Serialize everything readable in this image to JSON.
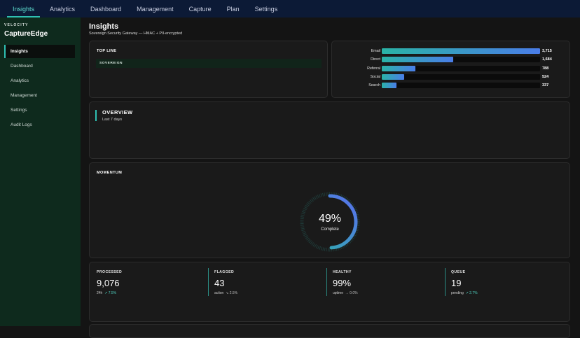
{
  "topnav": {
    "tabs": [
      {
        "label": "Insights",
        "active": true
      },
      {
        "label": "Analytics",
        "active": false
      },
      {
        "label": "Dashboard",
        "active": false
      },
      {
        "label": "Management",
        "active": false
      },
      {
        "label": "Capture",
        "active": false
      },
      {
        "label": "Plan",
        "active": false
      },
      {
        "label": "Settings",
        "active": false
      }
    ]
  },
  "sidebar": {
    "brand_small": "VELOCITY",
    "brand_name": "CaptureEdge",
    "items": [
      {
        "label": "Insights",
        "active": true
      },
      {
        "label": "Dashboard",
        "active": false
      },
      {
        "label": "Analytics",
        "active": false
      },
      {
        "label": "Management",
        "active": false
      },
      {
        "label": "Settings",
        "active": false
      },
      {
        "label": "Audit Logs",
        "active": false
      }
    ]
  },
  "header": {
    "title": "Insights",
    "subtitle": "Sovereign Security Gateway — HMAC + PII-encrypted"
  },
  "topline": {
    "label": "TOP LINE",
    "banner": "SOVEREIGN"
  },
  "channels": {
    "max": 3715,
    "rows": [
      {
        "label": "Email",
        "value": 3715,
        "display": "3,715"
      },
      {
        "label": "Direct",
        "value": 1684,
        "display": "1,684"
      },
      {
        "label": "Referral",
        "value": 788,
        "display": "788"
      },
      {
        "label": "Social",
        "value": 524,
        "display": "524"
      },
      {
        "label": "Search",
        "value": 337,
        "display": "337"
      }
    ]
  },
  "overview": {
    "title": "OVERVIEW",
    "subtitle": "Last 7 days"
  },
  "momentum": {
    "label": "MOMENTUM",
    "percent": 49,
    "percent_display": "49%",
    "caption": "Complete"
  },
  "stats": [
    {
      "label": "PROCESSED",
      "value": "9,076",
      "meta": "24h",
      "delta": "↗ 7.5%",
      "trend": "up"
    },
    {
      "label": "FLAGGED",
      "value": "43",
      "meta": "action",
      "delta": "↘ 2.5%",
      "trend": "down"
    },
    {
      "label": "HEALTHY",
      "value": "99%",
      "meta": "uptime",
      "delta": "→ 0.0%",
      "trend": "flat"
    },
    {
      "label": "QUEUE",
      "value": "19",
      "meta": "pending",
      "delta": "↗ 2.7%",
      "trend": "up"
    }
  ],
  "colors": {
    "accent": "#2fbfb2",
    "sidebar_bg": "#0e2a1d",
    "topnav_bg": "#0c1a36",
    "ring_start": "#2ab3a6",
    "ring_end": "#5a6ff0"
  }
}
